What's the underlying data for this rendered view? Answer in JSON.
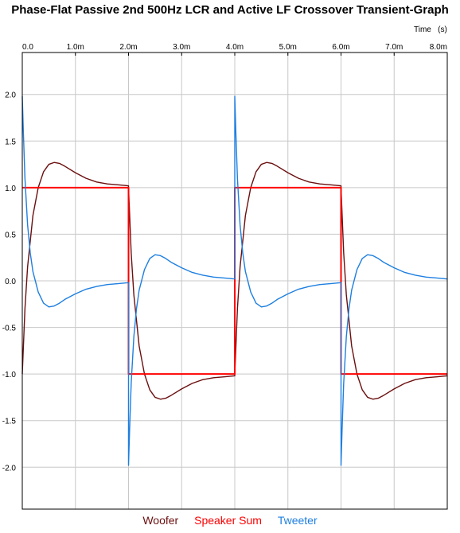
{
  "chart_data": {
    "type": "line",
    "title": "Phase-Flat Passive 2nd 500Hz LCR and Active LF Crossover Transient-Graph",
    "xlabel": "Time   (s)",
    "xlim": [
      0,
      8
    ],
    "ylim": [
      -2.45,
      2.45
    ],
    "x_ticks": [
      {
        "v": 0,
        "label": "0.0"
      },
      {
        "v": 1,
        "label": "1.0m"
      },
      {
        "v": 2,
        "label": "2.0m"
      },
      {
        "v": 3,
        "label": "3.0m"
      },
      {
        "v": 4,
        "label": "4.0m"
      },
      {
        "v": 5,
        "label": "5.0m"
      },
      {
        "v": 6,
        "label": "6.0m"
      },
      {
        "v": 7,
        "label": "7.0m"
      },
      {
        "v": 8,
        "label": "8.0m"
      }
    ],
    "y_ticks": [
      {
        "v": 2,
        "label": "2.0"
      },
      {
        "v": 1.5,
        "label": "1.5"
      },
      {
        "v": 1,
        "label": "1.0"
      },
      {
        "v": 0.5,
        "label": "0.5"
      },
      {
        "v": 0,
        "label": "0.0"
      },
      {
        "v": -0.5,
        "label": "-0.5"
      },
      {
        "v": -1,
        "label": "-1.0"
      },
      {
        "v": -1.5,
        "label": "-1.5"
      },
      {
        "v": -2,
        "label": "-2.0"
      }
    ],
    "grid": true,
    "legend_position": "bottom",
    "series": [
      {
        "name": "Woofer",
        "color": "#6b0f0f",
        "x": [
          0,
          0.05,
          0.1,
          0.2,
          0.3,
          0.4,
          0.5,
          0.6,
          0.7,
          0.8,
          1.0,
          1.2,
          1.4,
          1.6,
          1.8,
          2.0
        ],
        "y": [
          -1.0,
          -0.3,
          0.15,
          0.7,
          1.0,
          1.17,
          1.25,
          1.27,
          1.26,
          1.23,
          1.16,
          1.1,
          1.06,
          1.04,
          1.03,
          1.02
        ],
        "repeat_period": 4,
        "repeat_count": 2,
        "half_wave_antisymmetric": true
      },
      {
        "name": "Speaker Sum",
        "color": "#ff0000",
        "x": [
          0,
          2,
          2,
          4,
          4,
          6,
          6,
          8
        ],
        "y": [
          1,
          1,
          -1,
          -1,
          1,
          1,
          -1,
          -1
        ]
      },
      {
        "name": "Tweeter",
        "color": "#1e7fe0",
        "x": [
          0,
          0.02,
          0.05,
          0.1,
          0.15,
          0.2,
          0.3,
          0.4,
          0.5,
          0.6,
          0.7,
          0.8,
          1.0,
          1.2,
          1.4,
          1.6,
          1.8,
          2.0
        ],
        "y": [
          1.98,
          1.6,
          1.1,
          0.6,
          0.3,
          0.1,
          -0.12,
          -0.24,
          -0.28,
          -0.27,
          -0.24,
          -0.2,
          -0.14,
          -0.09,
          -0.06,
          -0.04,
          -0.03,
          -0.02
        ],
        "repeat_period": 4,
        "repeat_count": 2,
        "half_wave_antisymmetric": true
      }
    ]
  }
}
